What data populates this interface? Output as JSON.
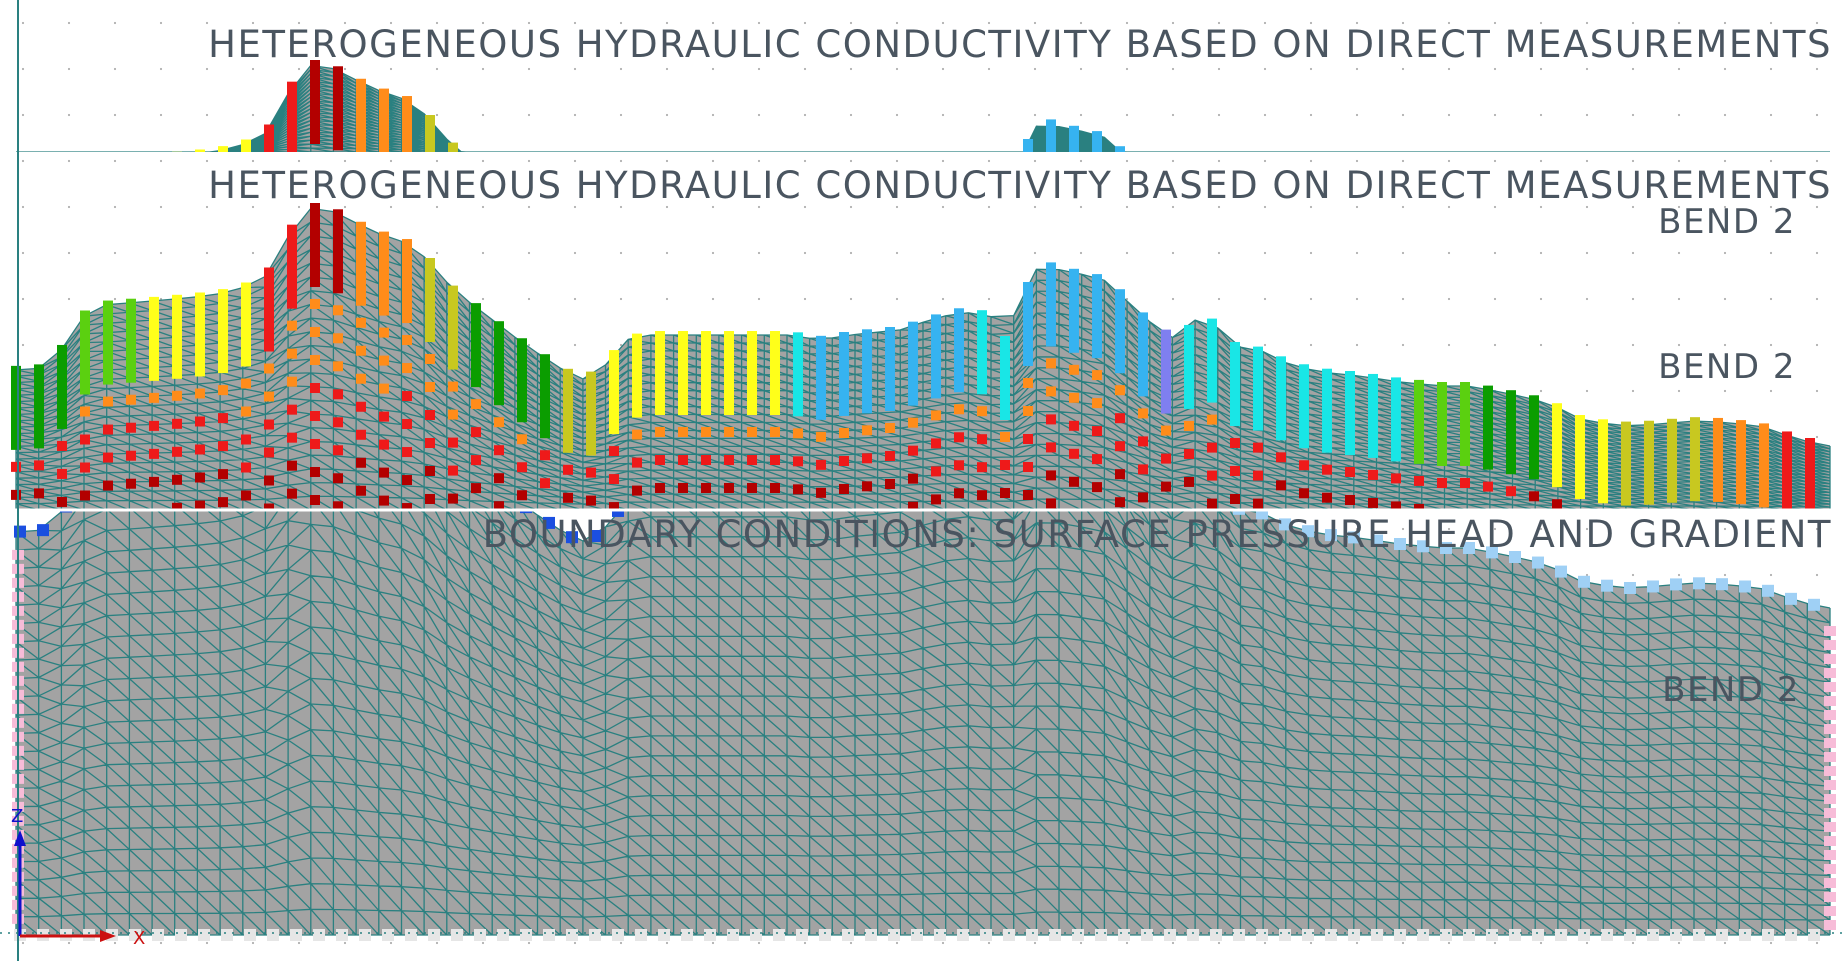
{
  "panels": [
    {
      "title": "HETEROGENEOUS HYDRAULIC CONDUCTIVITY BASED ON DIRECT MEASUREMENTS",
      "label": ""
    },
    {
      "title": "HETEROGENEOUS HYDRAULIC CONDUCTIVITY BASED ON DIRECT MEASUREMENTS",
      "label": "BEND 2",
      "label_repeat": "BEND 2"
    },
    {
      "title": "BOUNDARY CONDITIONS: SURFACE PRESSURE HEAD AND GRADIENT",
      "label": "BEND 2"
    }
  ],
  "axes": {
    "z_label": "Z",
    "x_label": "X"
  },
  "colors": {
    "background": "#ffffff",
    "mesh_fill": "#a3a3a3",
    "mesh_line": "#2a8080",
    "grid_dot": "#b0b0b0",
    "axis_line": "#2a8080",
    "title_text": "#4a5560",
    "z_axis": "#1010cc",
    "x_axis": "#cc1010",
    "bc_head": "#1b4fe0",
    "bc_gradient": "#9fd0f5",
    "bc_side": "#f7bcd8",
    "bc_bottom": "#e6e6e6",
    "conductivity_scale": [
      "#0b9d00",
      "#5bd010",
      "#ffff1a",
      "#c8c820",
      "#19e6e6",
      "#36b3f0",
      "#7f7ff0",
      "#ff8c1a",
      "#ee1a1a",
      "#b30000"
    ]
  }
}
